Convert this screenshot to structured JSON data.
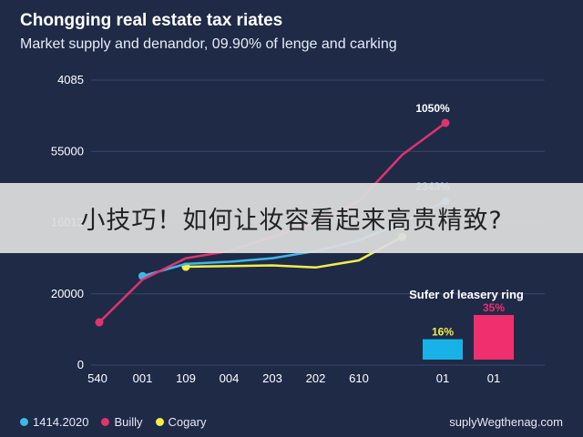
{
  "title": "Chongging real estate tax riates",
  "subtitle": "Market supply and denandor, 09.90% of lenge and carking",
  "overlay_text": "小技巧！如何让妆容看起来高贵精致?",
  "credit": "suplyWegthenag.com",
  "colors": {
    "background": "#1f2a47",
    "grid": "#3a4768",
    "pink": "#e0336f",
    "blue": "#3db8e8",
    "yellow": "#f2ee4a"
  },
  "legend": [
    {
      "label": "1414.2020",
      "color": "#3db8e8"
    },
    {
      "label": "Builly",
      "color": "#e0336f"
    },
    {
      "label": "Cogary",
      "color": "#f2ee4a"
    }
  ],
  "chart_data": {
    "type": "line",
    "categories": [
      "540",
      "001",
      "109",
      "004",
      "203",
      "202",
      "610",
      "",
      ""
    ],
    "y_ticks": [
      {
        "label": "4085",
        "value": 4
      },
      {
        "label": "55000",
        "value": 3
      },
      {
        "label": "16013",
        "value": 2
      },
      {
        "label": "20000",
        "value": 1
      },
      {
        "label": "0",
        "value": 0
      }
    ],
    "ylim": [
      0,
      4
    ],
    "series": [
      {
        "name": "Builly",
        "color": "#e0336f",
        "values": [
          0.6,
          1.2,
          1.5,
          1.6,
          1.8,
          2.0,
          2.3,
          2.95,
          3.4
        ],
        "end_label": "1050%"
      },
      {
        "name": "1414.2020",
        "color": "#3db8e8",
        "values": [
          null,
          1.25,
          1.42,
          1.45,
          1.5,
          1.6,
          1.75,
          2.0,
          2.3
        ],
        "end_label": "2343%"
      },
      {
        "name": "Cogary",
        "color": "#f2ee4a",
        "values": [
          null,
          null,
          1.38,
          1.39,
          1.4,
          1.37,
          1.47,
          1.8,
          null
        ],
        "end_label": ""
      }
    ],
    "inset": {
      "title": "Sufer of leasery ring",
      "categories": [
        "01",
        "01"
      ],
      "bars": [
        {
          "label": "16%",
          "value": 16,
          "color": "#18b2e6",
          "label_color": "#f2ee4a"
        },
        {
          "label": "35%",
          "value": 35,
          "color": "#f0306e",
          "label_color": "#f0306e"
        }
      ]
    },
    "grid": true,
    "legend_position": "bottom-left"
  }
}
